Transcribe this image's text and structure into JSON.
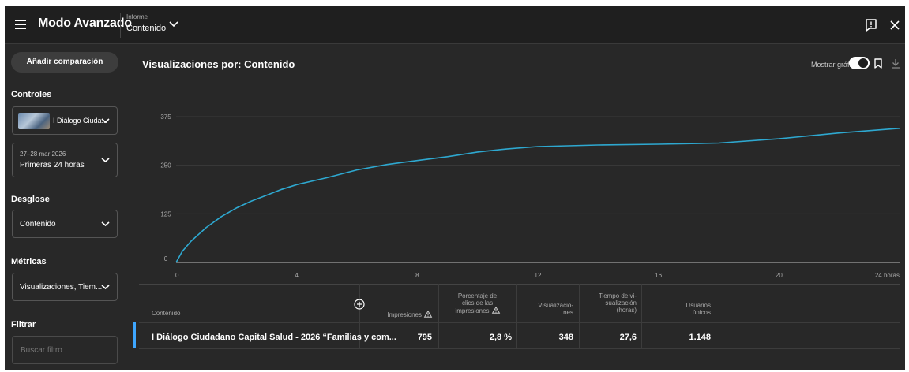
{
  "header": {
    "title": "Modo Avanzado",
    "report_caption": "Informe",
    "report_value": "Contenido"
  },
  "sidebar": {
    "add_comparison": "Añadir comparación",
    "controls_label": "Controles",
    "content_select": "I Diálogo Ciuda...",
    "date_range": "27–28 mar 2026",
    "period": "Primeras 24 horas",
    "breakdown_label": "Desglose",
    "breakdown_value": "Contenido",
    "metrics_label": "Métricas",
    "metrics_value": "Visualizaciones, Tiem...",
    "filter_label": "Filtrar",
    "filter_placeholder": "Buscar filtro"
  },
  "chart_header": {
    "title": "Visualizaciones por: Contenido",
    "show_chart_label": "Mostrar gráfico"
  },
  "chart_data": {
    "type": "line",
    "series": [
      {
        "color": "#2ea8d0",
        "x": [
          0,
          0.2,
          0.5,
          1,
          1.5,
          2,
          2.5,
          3,
          3.5,
          4,
          5,
          6,
          7,
          8,
          9,
          10,
          11,
          12,
          14,
          16,
          18,
          20,
          22,
          24
        ],
        "values": [
          0,
          28,
          55,
          90,
          118,
          140,
          158,
          173,
          188,
          200,
          218,
          238,
          252,
          262,
          272,
          284,
          292,
          298,
          302,
          304,
          307,
          318,
          333,
          345
        ]
      }
    ],
    "x_ticks": [
      "0",
      "4",
      "8",
      "12",
      "16",
      "20",
      "24 horas"
    ],
    "y_ticks": [
      "0",
      "125",
      "250",
      "375"
    ],
    "xlim": [
      0,
      24
    ],
    "ylim": [
      0,
      375
    ],
    "grid": true
  },
  "table": {
    "headers": {
      "content": "Contenido",
      "impressions": "Impresiones",
      "ctr": [
        "Porcentaje de",
        "clics de las",
        "impresiones"
      ],
      "views": [
        "Visualizacio-",
        "nes"
      ],
      "watch_time": [
        "Tiempo de vi-",
        "sualización",
        "(horas)"
      ],
      "unique_users": [
        "Usuarios",
        "únicos"
      ]
    },
    "row": {
      "title": "I Diálogo Ciudadano Capital Salud - 2026 “Familias y com...",
      "impressions": "795",
      "ctr": "2,8 %",
      "views": "348",
      "watch_time": "27,6",
      "unique_users": "1.148"
    }
  }
}
